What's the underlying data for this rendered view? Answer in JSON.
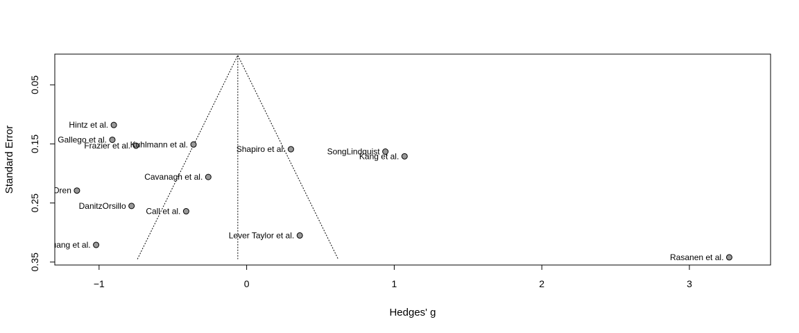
{
  "chart_data": {
    "type": "scatter",
    "title": "",
    "xlabel": "Hedges' g",
    "ylabel": "Standard Error",
    "xlim": [
      -1.3,
      3.55
    ],
    "ylim": [
      0.355,
      -0.002
    ],
    "y_reversed": true,
    "xticks": [
      -1,
      0,
      1,
      2,
      3
    ],
    "yticks": [
      0.05,
      0.15,
      0.25,
      0.35
    ],
    "grid": false,
    "funnel": {
      "apex_x": -0.06,
      "apex_y": 0.0,
      "bottom_y": 0.345,
      "left_x": -0.74,
      "right_x": 0.62
    },
    "points": [
      {
        "label": "Hintz et al.",
        "x": -0.9,
        "y": 0.118
      },
      {
        "label": "Gallego et al.",
        "x": -0.91,
        "y": 0.143
      },
      {
        "label": "Frazier et al.",
        "x": -0.75,
        "y": 0.153
      },
      {
        "label": "Kuhlmann et al.",
        "x": -0.36,
        "y": 0.151
      },
      {
        "label": "Shapiro et al.",
        "x": 0.3,
        "y": 0.159
      },
      {
        "label": "SongLindquist",
        "x": 0.94,
        "y": 0.163
      },
      {
        "label": "Kang et al.",
        "x": 1.07,
        "y": 0.171
      },
      {
        "label": "Cavanagh et al.",
        "x": -0.26,
        "y": 0.206
      },
      {
        "label": "Oren",
        "x": -1.15,
        "y": 0.229
      },
      {
        "label": "DanitzOrsillo",
        "x": -0.78,
        "y": 0.255
      },
      {
        "label": "Call et al.",
        "x": -0.41,
        "y": 0.264
      },
      {
        "label": "Lever Taylor et al.",
        "x": 0.36,
        "y": 0.305
      },
      {
        "label": "Huang et al.",
        "x": -1.02,
        "y": 0.321
      },
      {
        "label": "Rasanen et al.",
        "x": 3.27,
        "y": 0.342
      }
    ]
  }
}
